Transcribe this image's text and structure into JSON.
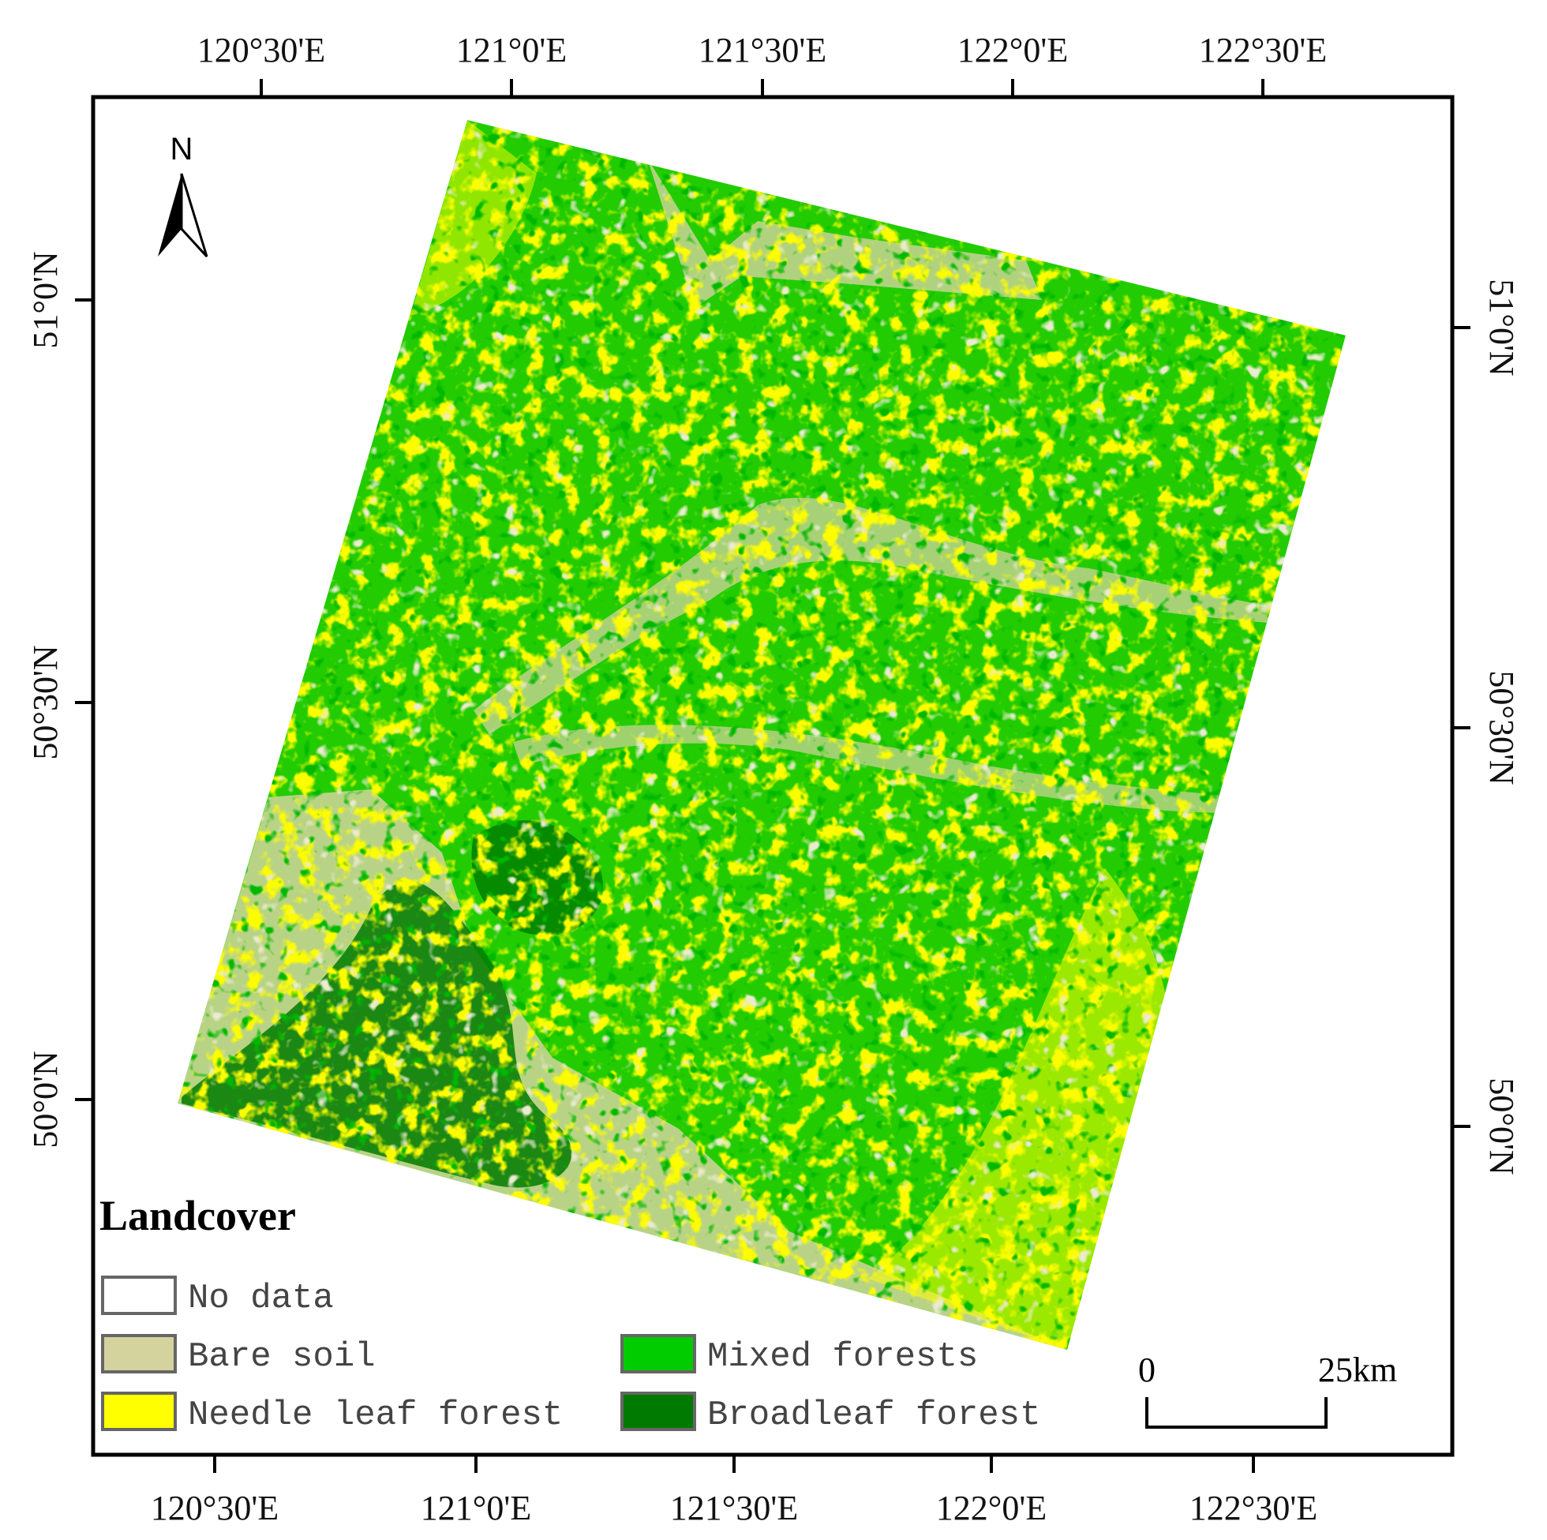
{
  "colors": {
    "no_data": "#ffffff",
    "bare_soil": "#d4d39e",
    "needle_leaf_forest": "#ffff00",
    "mixed_forests": "#00cc00",
    "broadleaf_forest": "#007a00",
    "frame": "#000000"
  },
  "axes": {
    "top": [
      "120°30'E",
      "121°0'E",
      "121°30'E",
      "122°0'E",
      "122°30'E"
    ],
    "bottom": [
      "120°30'E",
      "121°0'E",
      "121°30'E",
      "122°0'E",
      "122°30'E"
    ],
    "left": [
      "51°0'N",
      "50°30'N",
      "50°0'N"
    ],
    "right": [
      "51°0'N",
      "50°30'N",
      "50°0'N"
    ]
  },
  "north_arrow": {
    "label": "N",
    "icon": "north-arrow-icon"
  },
  "legend": {
    "title": "Landcover",
    "items": [
      {
        "label": "No data",
        "color_key": "no_data"
      },
      {
        "label": "Bare soil",
        "color_key": "bare_soil"
      },
      {
        "label": "Needle leaf forest",
        "color_key": "needle_leaf_forest"
      },
      {
        "label": "Mixed forests",
        "color_key": "mixed_forests"
      },
      {
        "label": "Broadleaf forest",
        "color_key": "broadleaf_forest"
      }
    ]
  },
  "scale_bar": {
    "start": "0",
    "end": "25km"
  }
}
